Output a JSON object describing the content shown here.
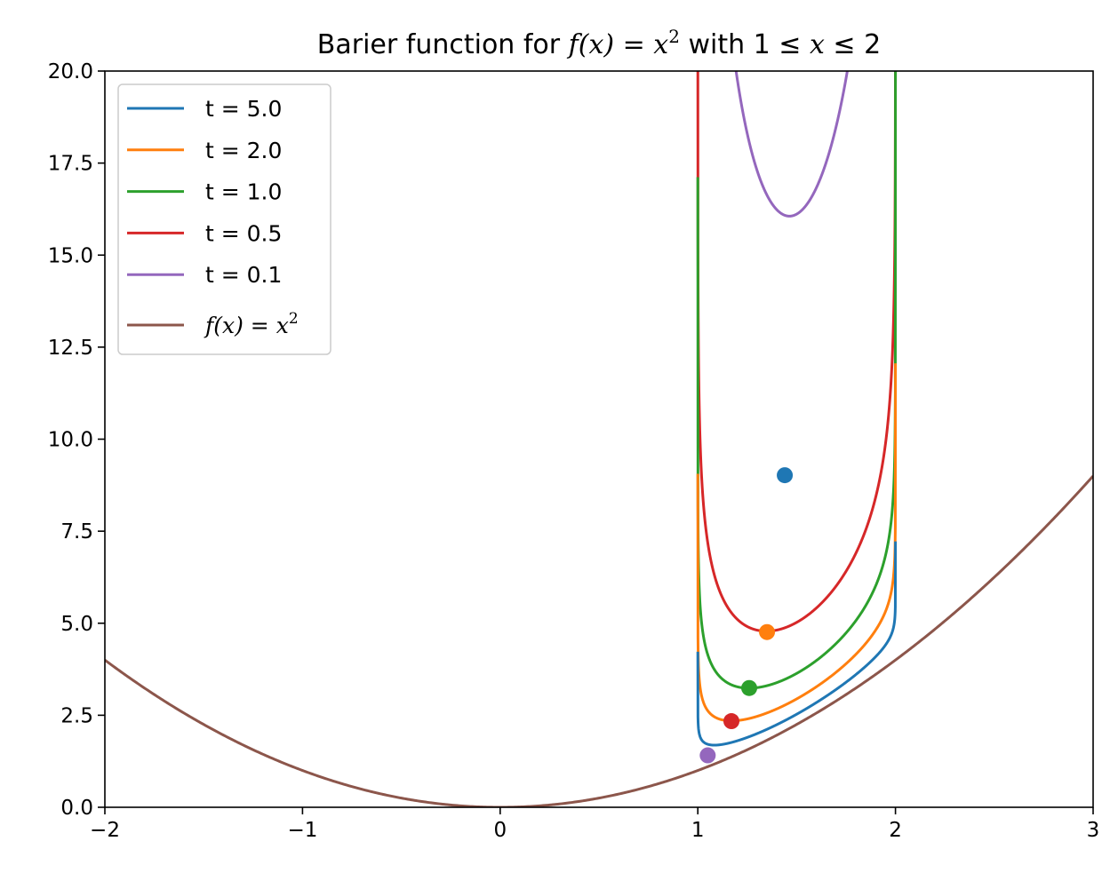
{
  "chart_data": {
    "type": "line",
    "title": {
      "prefix": "Barier function for ",
      "fx": "f(x)",
      "eq": " = ",
      "x": "x",
      "sup": "2",
      "mid": " with 1 ≤ ",
      "x2": "x",
      "tail": " ≤ 2"
    },
    "xlabel": "",
    "ylabel": "",
    "xlim": [
      -2,
      3
    ],
    "ylim": [
      0,
      20
    ],
    "x_ticks": [
      -2,
      -1,
      0,
      1,
      2,
      3
    ],
    "x_tick_labels": [
      "−2",
      "−1",
      "0",
      "1",
      "2",
      "3"
    ],
    "y_ticks": [
      0,
      2.5,
      5,
      7.5,
      10,
      12.5,
      15,
      17.5,
      20
    ],
    "y_tick_labels": [
      "0.0",
      "2.5",
      "5.0",
      "7.5",
      "10.0",
      "12.5",
      "15.0",
      "17.5",
      "20.0"
    ],
    "grid": false,
    "legend_position": "top-left",
    "constraint": {
      "lower": 1,
      "upper": 2
    },
    "series": [
      {
        "name": "t = 5.0",
        "t": 5.0,
        "color": "#1f77b4",
        "min_x": 1.44,
        "min_y": 9.02
      },
      {
        "name": "t = 2.0",
        "t": 2.0,
        "color": "#ff7f0e",
        "min_x": 1.35,
        "min_y": 4.76
      },
      {
        "name": "t = 1.0",
        "t": 1.0,
        "color": "#2ca02c",
        "min_x": 1.26,
        "min_y": 3.24
      },
      {
        "name": "t = 0.5",
        "t": 0.5,
        "color": "#d62728",
        "min_x": 1.17,
        "min_y": 2.34
      },
      {
        "name": "t = 0.1",
        "t": 0.1,
        "color": "#9467bd",
        "min_x": 1.05,
        "min_y": 1.41
      }
    ],
    "base_curve": {
      "label": {
        "fx": "f(x)",
        "eq": " = ",
        "x": "x",
        "sup": "2"
      },
      "color": "#8c564b",
      "formula": "x^2"
    }
  }
}
